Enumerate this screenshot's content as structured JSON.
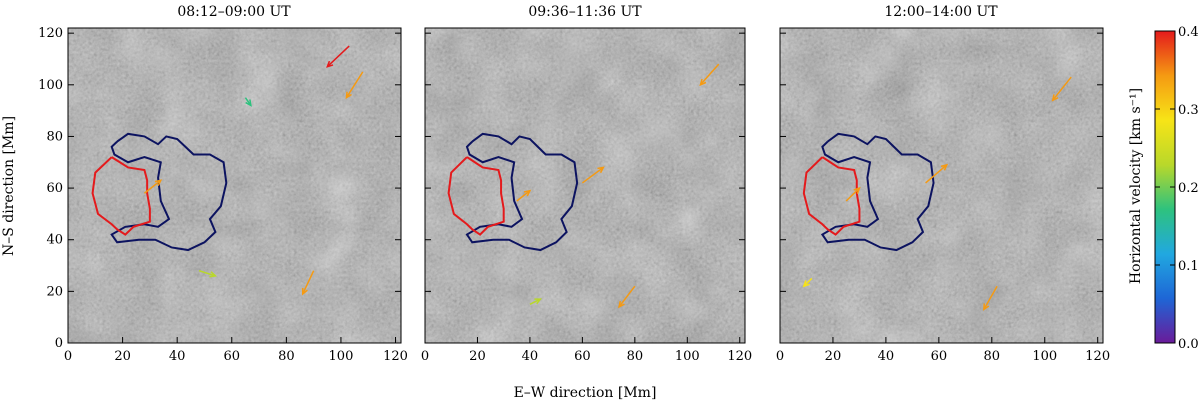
{
  "chart_data": {
    "type": "vector-field",
    "panels": [
      {
        "title": "08:12–09:00 UT"
      },
      {
        "title": "09:36–11:36 UT"
      },
      {
        "title": "12:00–14:00 UT"
      }
    ],
    "xlabel": "E–W direction   [Mm]",
    "ylabel": "N–S direction   [Mm]",
    "xlim": [
      0,
      122
    ],
    "ylim": [
      0,
      122
    ],
    "x_ticks": [
      "0",
      "20",
      "40",
      "60",
      "80",
      "100",
      "120"
    ],
    "y_ticks": [
      "0",
      "20",
      "40",
      "60",
      "80",
      "100",
      "120"
    ],
    "colorbar": {
      "label": "Horizontal velocity   [km s⁻¹]",
      "range": [
        0.0,
        0.4
      ],
      "ticks": [
        "0.0",
        "0.1",
        "0.2",
        "0.3",
        "0.4"
      ],
      "colors": [
        "#6a1b9a",
        "#1e66d6",
        "#21a8e0",
        "#2ec27e",
        "#b9d82a",
        "#f7e417",
        "#f59a12",
        "#e41a1c"
      ]
    },
    "contours": {
      "blue_color": "#0c1360",
      "red_color": "#e41a1c",
      "blue": [
        [
          18,
          78
        ],
        [
          22,
          81
        ],
        [
          28,
          80
        ],
        [
          33,
          77
        ],
        [
          36,
          80
        ],
        [
          40,
          79
        ],
        [
          43,
          76
        ],
        [
          46,
          73
        ],
        [
          52,
          73
        ],
        [
          57,
          70
        ],
        [
          58,
          62
        ],
        [
          56,
          53
        ],
        [
          52,
          48
        ],
        [
          54,
          43
        ],
        [
          50,
          39
        ],
        [
          44,
          36
        ],
        [
          38,
          37
        ],
        [
          32,
          40
        ],
        [
          26,
          40
        ],
        [
          18,
          39
        ],
        [
          16,
          42
        ],
        [
          21,
          45
        ],
        [
          28,
          46
        ],
        [
          33,
          45
        ],
        [
          37,
          48
        ],
        [
          34,
          55
        ],
        [
          33,
          64
        ],
        [
          34,
          70
        ],
        [
          28,
          72
        ],
        [
          22,
          70
        ],
        [
          17,
          73
        ],
        [
          16,
          76
        ],
        [
          18,
          78
        ]
      ],
      "red": [
        [
          16,
          72
        ],
        [
          10,
          66
        ],
        [
          9,
          58
        ],
        [
          11,
          50
        ],
        [
          16,
          46
        ],
        [
          18,
          44
        ],
        [
          21,
          42
        ],
        [
          24,
          45
        ],
        [
          30,
          47
        ],
        [
          30,
          52
        ],
        [
          29,
          58
        ],
        [
          29,
          63
        ],
        [
          28,
          67
        ],
        [
          22,
          68
        ],
        [
          19,
          70
        ],
        [
          16,
          72
        ]
      ]
    },
    "vectors": [
      {
        "panel": 0,
        "x": 103,
        "y": 115,
        "u": -8,
        "v": -8,
        "speed": 0.38
      },
      {
        "panel": 0,
        "x": 108,
        "y": 105,
        "u": -6,
        "v": -10,
        "speed": 0.36
      },
      {
        "panel": 0,
        "x": 28,
        "y": 58,
        "u": 6,
        "v": 5,
        "speed": 0.35
      },
      {
        "panel": 0,
        "x": 90,
        "y": 28,
        "u": -4,
        "v": -9,
        "speed": 0.33
      },
      {
        "panel": 0,
        "x": 48,
        "y": 28,
        "u": 6,
        "v": -2,
        "speed": 0.25
      },
      {
        "panel": 0,
        "x": 65,
        "y": 95,
        "u": 2,
        "v": -3,
        "speed": 0.15
      },
      {
        "panel": 1,
        "x": 60,
        "y": 62,
        "u": 8,
        "v": 6,
        "speed": 0.37
      },
      {
        "panel": 1,
        "x": 112,
        "y": 108,
        "u": -7,
        "v": -8,
        "speed": 0.36
      },
      {
        "panel": 1,
        "x": 35,
        "y": 55,
        "u": 5,
        "v": 4,
        "speed": 0.34
      },
      {
        "panel": 1,
        "x": 80,
        "y": 22,
        "u": -6,
        "v": -8,
        "speed": 0.33
      },
      {
        "panel": 1,
        "x": 40,
        "y": 15,
        "u": 4,
        "v": 2,
        "speed": 0.22
      },
      {
        "panel": 2,
        "x": 55,
        "y": 62,
        "u": 8,
        "v": 7,
        "speed": 0.37
      },
      {
        "panel": 2,
        "x": 110,
        "y": 103,
        "u": -7,
        "v": -9,
        "speed": 0.36
      },
      {
        "panel": 2,
        "x": 25,
        "y": 55,
        "u": 5,
        "v": 5,
        "speed": 0.35
      },
      {
        "panel": 2,
        "x": 82,
        "y": 22,
        "u": -5,
        "v": -9,
        "speed": 0.34
      },
      {
        "panel": 2,
        "x": 12,
        "y": 25,
        "u": -3,
        "v": -3,
        "speed": 0.3
      }
    ]
  }
}
